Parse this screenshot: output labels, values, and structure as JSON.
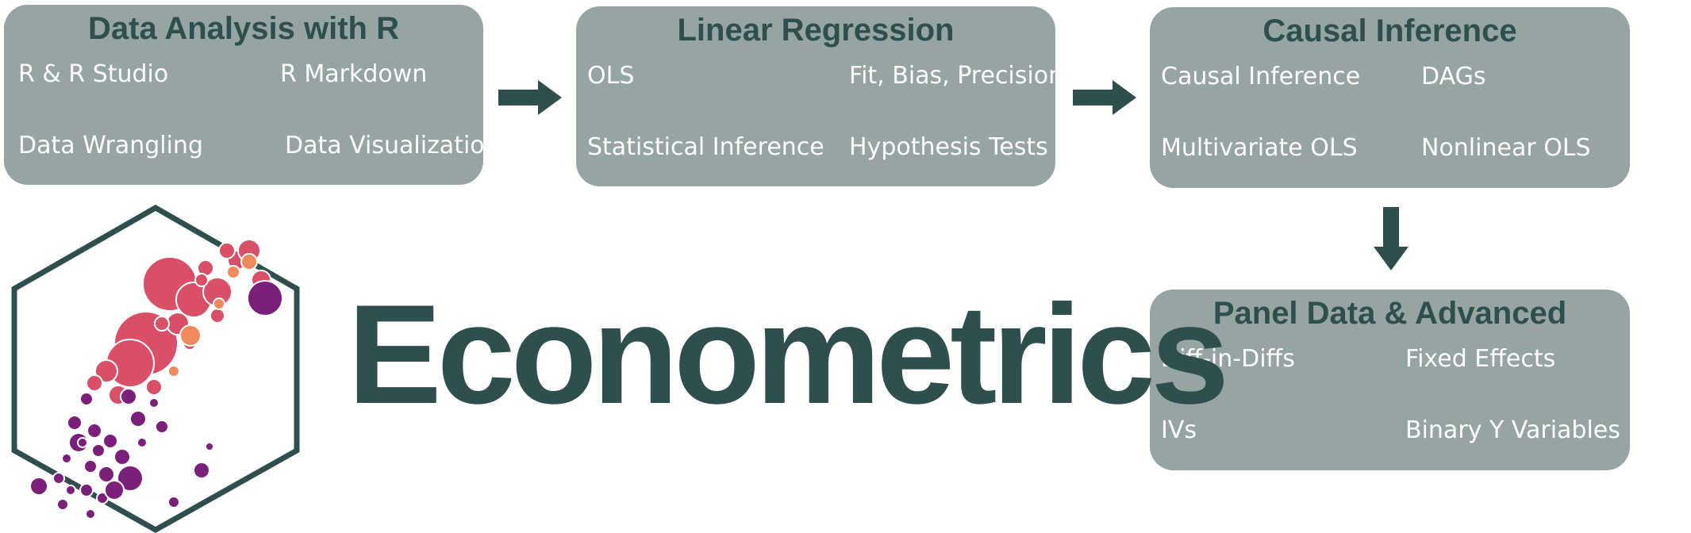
{
  "colors": {
    "box_fill": "#96a5a4",
    "title_text": "#2f4f4f",
    "item_text": "#ffffff",
    "arrow": "#2f4f4f",
    "hex_border": "#2f4f4f",
    "bubble_red": "#d94f68",
    "bubble_orange": "#f08a5d",
    "bubble_purple": "#7b1f7a"
  },
  "boxes": {
    "r": {
      "title": "Data Analysis with R",
      "items": [
        "R & R Studio",
        "R Markdown",
        "Data Wrangling",
        "Data Visualization"
      ]
    },
    "regression": {
      "title": "Linear Regression",
      "items": [
        "OLS",
        "Fit, Bias, Precision",
        "Statistical Inference",
        "Hypothesis Tests"
      ]
    },
    "causal": {
      "title": "Causal Inference",
      "items": [
        "Causal Inference",
        "DAGs",
        "Multivariate OLS",
        "Nonlinear OLS"
      ]
    },
    "panel": {
      "title": "Panel Data & Advanced",
      "items": [
        "Diff-in-Diffs",
        "Fixed Effects",
        "IVs",
        "Binary Y Variables"
      ]
    }
  },
  "wordmark": "Econometrics",
  "logo": {
    "icon": "hexagon-bubble-chart-logo"
  },
  "arrows": [
    "arrow-right-icon",
    "arrow-right-icon",
    "arrow-down-icon"
  ]
}
